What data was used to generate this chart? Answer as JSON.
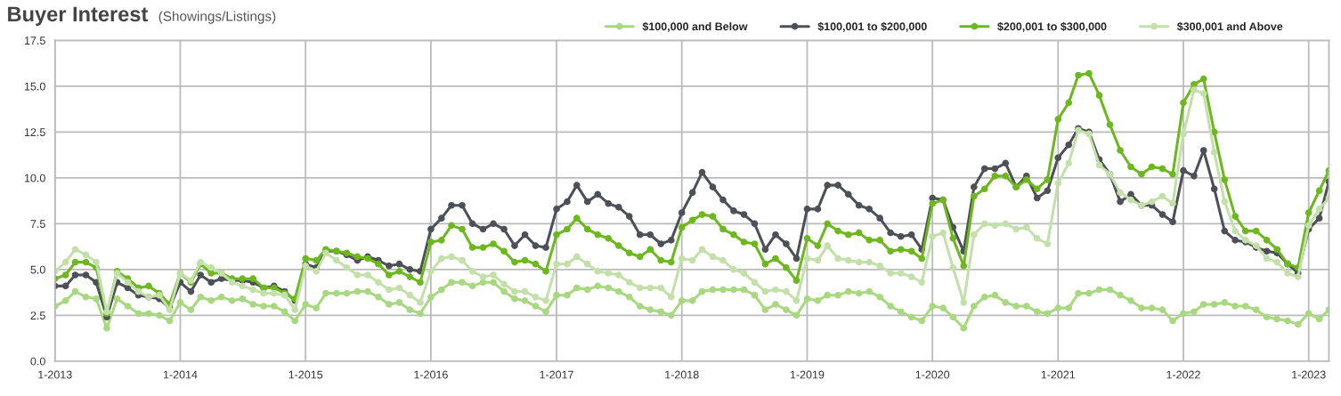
{
  "chart_data": {
    "type": "line",
    "title": "Buyer Interest",
    "subtitle": "(Showings/Listings)",
    "x": [
      "2013-01",
      "2013-02",
      "2013-03",
      "2013-04",
      "2013-05",
      "2013-06",
      "2013-07",
      "2013-08",
      "2013-09",
      "2013-10",
      "2013-11",
      "2013-12",
      "2014-01",
      "2014-02",
      "2014-03",
      "2014-04",
      "2014-05",
      "2014-06",
      "2014-07",
      "2014-08",
      "2014-09",
      "2014-10",
      "2014-11",
      "2014-12",
      "2015-01",
      "2015-02",
      "2015-03",
      "2015-04",
      "2015-05",
      "2015-06",
      "2015-07",
      "2015-08",
      "2015-09",
      "2015-10",
      "2015-11",
      "2015-12",
      "2016-01",
      "2016-02",
      "2016-03",
      "2016-04",
      "2016-05",
      "2016-06",
      "2016-07",
      "2016-08",
      "2016-09",
      "2016-10",
      "2016-11",
      "2016-12",
      "2017-01",
      "2017-02",
      "2017-03",
      "2017-04",
      "2017-05",
      "2017-06",
      "2017-07",
      "2017-08",
      "2017-09",
      "2017-10",
      "2017-11",
      "2017-12",
      "2018-01",
      "2018-02",
      "2018-03",
      "2018-04",
      "2018-05",
      "2018-06",
      "2018-07",
      "2018-08",
      "2018-09",
      "2018-10",
      "2018-11",
      "2018-12",
      "2019-01",
      "2019-02",
      "2019-03",
      "2019-04",
      "2019-05",
      "2019-06",
      "2019-07",
      "2019-08",
      "2019-09",
      "2019-10",
      "2019-11",
      "2019-12",
      "2020-01",
      "2020-02",
      "2020-03",
      "2020-04",
      "2020-05",
      "2020-06",
      "2020-07",
      "2020-08",
      "2020-09",
      "2020-10",
      "2020-11",
      "2020-12",
      "2021-01",
      "2021-02",
      "2021-03",
      "2021-04",
      "2021-05",
      "2021-06",
      "2021-07",
      "2021-08",
      "2021-09",
      "2021-10",
      "2021-11",
      "2021-12",
      "2022-01",
      "2022-02",
      "2022-03",
      "2022-04",
      "2022-05",
      "2022-06",
      "2022-07",
      "2022-08",
      "2022-09",
      "2022-10",
      "2022-11",
      "2022-12",
      "2023-01",
      "2023-02",
      "2023-03"
    ],
    "series": [
      {
        "name": "$100,000 and Below",
        "color": "#a8d880",
        "values": [
          3.0,
          3.3,
          3.8,
          3.5,
          3.4,
          1.8,
          3.4,
          3.0,
          2.6,
          2.6,
          2.5,
          2.2,
          3.2,
          2.8,
          3.5,
          3.3,
          3.5,
          3.3,
          3.4,
          3.1,
          3.0,
          3.0,
          2.7,
          2.2,
          3.1,
          2.9,
          3.7,
          3.7,
          3.7,
          3.8,
          3.8,
          3.5,
          3.1,
          3.2,
          2.8,
          2.6,
          3.5,
          3.9,
          4.3,
          4.3,
          4.1,
          4.3,
          4.3,
          3.8,
          3.4,
          3.3,
          3.0,
          2.7,
          3.6,
          3.6,
          4.0,
          3.9,
          4.1,
          4.0,
          3.8,
          3.5,
          3.0,
          2.8,
          2.7,
          2.5,
          3.3,
          3.3,
          3.8,
          3.9,
          3.9,
          3.9,
          3.9,
          3.6,
          2.8,
          3.1,
          2.8,
          2.5,
          3.4,
          3.3,
          3.6,
          3.6,
          3.8,
          3.7,
          3.8,
          3.5,
          3.0,
          2.7,
          2.4,
          2.2,
          3.0,
          2.9,
          2.4,
          1.8,
          3.0,
          3.5,
          3.6,
          3.2,
          3.0,
          3.0,
          2.7,
          2.6,
          2.9,
          2.9,
          3.7,
          3.7,
          3.9,
          3.9,
          3.6,
          3.3,
          2.9,
          2.9,
          2.8,
          2.2,
          2.6,
          2.7,
          3.1,
          3.1,
          3.2,
          3.0,
          3.0,
          2.8,
          2.4,
          2.3,
          2.2,
          2.0,
          2.6,
          2.3,
          2.8
        ]
      },
      {
        "name": "$100,001 to $200,000",
        "color": "#4d5157",
        "values": [
          4.1,
          4.1,
          4.7,
          4.7,
          4.3,
          2.4,
          4.3,
          4.0,
          3.6,
          3.5,
          3.4,
          2.9,
          4.3,
          3.8,
          4.7,
          4.3,
          4.5,
          4.4,
          4.4,
          4.3,
          4.0,
          4.1,
          3.8,
          3.3,
          5.3,
          5.1,
          6.0,
          6.0,
          5.8,
          5.5,
          5.7,
          5.5,
          5.2,
          5.3,
          5.0,
          4.9,
          7.2,
          7.8,
          8.5,
          8.5,
          7.5,
          7.2,
          7.5,
          7.2,
          6.3,
          6.9,
          6.3,
          6.2,
          8.3,
          8.7,
          9.6,
          8.7,
          9.1,
          8.6,
          8.4,
          7.9,
          6.9,
          6.9,
          6.4,
          6.6,
          8.1,
          9.2,
          10.3,
          9.5,
          8.8,
          8.2,
          8.0,
          7.5,
          6.1,
          6.9,
          6.4,
          5.6,
          8.3,
          8.3,
          9.6,
          9.6,
          9.1,
          8.5,
          8.3,
          7.8,
          7.0,
          6.8,
          6.9,
          6.1,
          8.9,
          8.8,
          7.3,
          6.0,
          9.5,
          10.5,
          10.5,
          10.8,
          9.5,
          10.1,
          8.9,
          9.3,
          11.1,
          11.8,
          12.7,
          12.5,
          11.0,
          10.2,
          8.7,
          9.1,
          8.5,
          8.5,
          8.0,
          7.6,
          10.4,
          10.1,
          11.5,
          9.4,
          7.1,
          6.6,
          6.5,
          6.2,
          6.0,
          5.9,
          5.3,
          4.8,
          7.2,
          7.8,
          9.8
        ]
      },
      {
        "name": "$200,001 to $300,000",
        "color": "#6cb81e",
        "values": [
          4.5,
          4.7,
          5.4,
          5.4,
          5.1,
          2.6,
          4.9,
          4.5,
          4.0,
          4.1,
          3.7,
          3.1,
          4.8,
          4.3,
          5.3,
          4.8,
          4.8,
          4.5,
          4.5,
          4.5,
          4.0,
          4.0,
          3.7,
          3.4,
          5.6,
          5.5,
          6.1,
          6.0,
          5.9,
          5.7,
          5.6,
          5.3,
          4.7,
          4.9,
          4.6,
          4.3,
          6.5,
          6.6,
          7.4,
          7.2,
          6.2,
          6.2,
          6.4,
          6.0,
          5.4,
          5.5,
          5.3,
          4.9,
          6.9,
          7.2,
          7.8,
          7.2,
          6.9,
          6.7,
          6.3,
          5.9,
          5.7,
          6.1,
          5.5,
          5.4,
          7.3,
          7.7,
          8.0,
          7.9,
          7.2,
          6.9,
          6.5,
          6.4,
          5.3,
          5.6,
          5.1,
          4.4,
          6.7,
          6.3,
          7.5,
          7.1,
          6.9,
          7.0,
          6.6,
          6.6,
          6.0,
          6.1,
          6.0,
          5.6,
          8.6,
          8.8,
          6.7,
          5.2,
          9.0,
          9.4,
          10.1,
          10.1,
          9.5,
          9.9,
          9.4,
          9.9,
          13.2,
          14.1,
          15.6,
          15.7,
          14.5,
          12.9,
          11.5,
          10.6,
          10.2,
          10.6,
          10.5,
          10.2,
          14.1,
          15.1,
          15.4,
          12.5,
          9.9,
          7.9,
          7.1,
          7.1,
          6.6,
          6.1,
          5.3,
          5.1,
          8.1,
          9.3,
          10.4
        ]
      },
      {
        "name": "$300,001 and Above",
        "color": "#c4e0aa",
        "values": [
          4.9,
          5.4,
          6.1,
          5.8,
          5.4,
          2.7,
          4.8,
          4.3,
          3.8,
          3.5,
          3.6,
          2.8,
          4.8,
          4.4,
          5.4,
          5.1,
          4.8,
          4.3,
          4.1,
          3.9,
          3.7,
          3.7,
          3.6,
          2.8,
          5.2,
          4.9,
          5.9,
          5.5,
          5.1,
          4.7,
          4.7,
          4.3,
          3.9,
          4.0,
          3.6,
          3.2,
          4.9,
          5.6,
          5.7,
          5.5,
          4.9,
          4.6,
          4.7,
          4.2,
          3.8,
          3.8,
          3.5,
          3.3,
          5.3,
          5.3,
          5.7,
          5.3,
          4.9,
          4.8,
          4.7,
          4.3,
          4.0,
          4.0,
          4.0,
          3.5,
          5.6,
          5.5,
          6.1,
          5.7,
          5.5,
          5.0,
          4.8,
          4.3,
          3.8,
          3.9,
          3.8,
          3.3,
          5.6,
          5.5,
          6.3,
          5.6,
          5.5,
          5.4,
          5.4,
          5.2,
          4.8,
          4.8,
          4.6,
          4.3,
          6.8,
          7.0,
          5.1,
          3.2,
          6.9,
          7.5,
          7.4,
          7.5,
          7.2,
          7.3,
          6.7,
          6.4,
          9.7,
          10.8,
          12.6,
          12.4,
          10.7,
          10.2,
          9.2,
          8.8,
          8.5,
          8.7,
          9.0,
          8.6,
          12.4,
          14.8,
          14.6,
          11.4,
          8.7,
          7.1,
          6.6,
          6.3,
          5.6,
          5.4,
          4.8,
          4.6,
          7.4,
          8.3,
          8.9
        ]
      }
    ],
    "xlim": [
      "2013-01",
      "2023-03"
    ],
    "xticks": [
      {
        "value": "2013-01",
        "label": "1-2013"
      },
      {
        "value": "2014-01",
        "label": "1-2014"
      },
      {
        "value": "2015-01",
        "label": "1-2015"
      },
      {
        "value": "2016-01",
        "label": "1-2016"
      },
      {
        "value": "2017-01",
        "label": "1-2017"
      },
      {
        "value": "2018-01",
        "label": "1-2018"
      },
      {
        "value": "2019-01",
        "label": "1-2019"
      },
      {
        "value": "2020-01",
        "label": "1-2020"
      },
      {
        "value": "2021-01",
        "label": "1-2021"
      },
      {
        "value": "2022-01",
        "label": "1-2022"
      },
      {
        "value": "2023-01",
        "label": "1-2023"
      }
    ],
    "ylim": [
      0,
      17.5
    ],
    "yticks": [
      {
        "value": 0,
        "label": "0.0"
      },
      2.5,
      {
        "value": 5,
        "label": "5.0"
      },
      7.5,
      {
        "value": 10,
        "label": "10.0"
      },
      12.5,
      {
        "value": 15,
        "label": "15.0"
      },
      17.5
    ],
    "grid": true,
    "legend": "top right",
    "marker": "circle",
    "line_style": "solid"
  }
}
